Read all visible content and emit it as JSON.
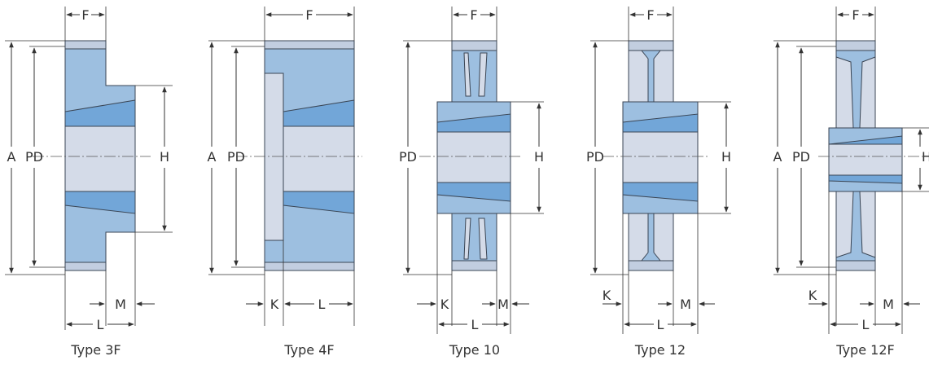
{
  "colors": {
    "body_fill": "#9dbfe0",
    "bore_fill": "#d4dbe8",
    "bushing_fill": "#72a6d8",
    "rim_fill": "#c2cee0",
    "outline": "#3a4554",
    "dim_line": "#333333"
  },
  "drawings": [
    {
      "id": "type-3f",
      "caption": "Type 3F",
      "labels": [
        "F",
        "A",
        "PD",
        "H",
        "M",
        "L"
      ]
    },
    {
      "id": "type-4f",
      "caption": "Type 4F",
      "labels": [
        "F",
        "A",
        "PD",
        "K",
        "L"
      ]
    },
    {
      "id": "type-10",
      "caption": "Type 10",
      "labels": [
        "F",
        "PD",
        "H",
        "K",
        "M",
        "L"
      ]
    },
    {
      "id": "type-12",
      "caption": "Type 12",
      "labels": [
        "F",
        "PD",
        "H",
        "K",
        "M",
        "L"
      ]
    },
    {
      "id": "type-12f",
      "caption": "Type 12F",
      "labels": [
        "F",
        "A",
        "PD",
        "H",
        "K",
        "M",
        "L"
      ]
    }
  ]
}
